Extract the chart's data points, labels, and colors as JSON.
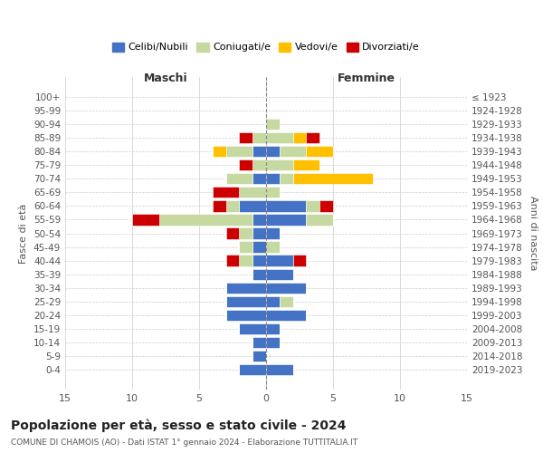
{
  "age_groups": [
    "0-4",
    "5-9",
    "10-14",
    "15-19",
    "20-24",
    "25-29",
    "30-34",
    "35-39",
    "40-44",
    "45-49",
    "50-54",
    "55-59",
    "60-64",
    "65-69",
    "70-74",
    "75-79",
    "80-84",
    "85-89",
    "90-94",
    "95-99",
    "100+"
  ],
  "birth_years": [
    "2019-2023",
    "2014-2018",
    "2009-2013",
    "2004-2008",
    "1999-2003",
    "1994-1998",
    "1989-1993",
    "1984-1988",
    "1979-1983",
    "1974-1978",
    "1969-1973",
    "1964-1968",
    "1959-1963",
    "1954-1958",
    "1949-1953",
    "1944-1948",
    "1939-1943",
    "1934-1938",
    "1929-1933",
    "1924-1928",
    "≤ 1923"
  ],
  "colors": {
    "celibi": "#4472c4",
    "coniugati": "#c5d9a0",
    "vedovi": "#ffc000",
    "divorziati": "#cc0000"
  },
  "maschi": {
    "celibi": [
      2,
      1,
      1,
      2,
      3,
      3,
      3,
      1,
      1,
      1,
      1,
      1,
      2,
      0,
      1,
      0,
      1,
      0,
      0,
      0,
      0
    ],
    "coniugati": [
      0,
      0,
      0,
      0,
      0,
      0,
      0,
      0,
      1,
      1,
      1,
      7,
      1,
      2,
      2,
      1,
      2,
      1,
      0,
      0,
      0
    ],
    "vedovi": [
      0,
      0,
      0,
      0,
      0,
      0,
      0,
      0,
      0,
      0,
      0,
      0,
      0,
      0,
      0,
      0,
      1,
      0,
      0,
      0,
      0
    ],
    "divorziati": [
      0,
      0,
      0,
      0,
      0,
      0,
      0,
      0,
      1,
      0,
      1,
      2,
      1,
      2,
      0,
      1,
      0,
      1,
      0,
      0,
      0
    ]
  },
  "femmine": {
    "celibi": [
      2,
      0,
      1,
      1,
      3,
      1,
      3,
      2,
      2,
      0,
      1,
      3,
      3,
      0,
      1,
      0,
      1,
      0,
      0,
      0,
      0
    ],
    "coniugati": [
      0,
      0,
      0,
      0,
      0,
      1,
      0,
      0,
      0,
      1,
      0,
      2,
      1,
      1,
      1,
      2,
      2,
      2,
      1,
      0,
      0
    ],
    "vedovi": [
      0,
      0,
      0,
      0,
      0,
      0,
      0,
      0,
      0,
      0,
      0,
      0,
      0,
      0,
      6,
      2,
      2,
      1,
      0,
      0,
      0
    ],
    "divorziati": [
      0,
      0,
      0,
      0,
      0,
      0,
      0,
      0,
      1,
      0,
      0,
      0,
      1,
      0,
      0,
      0,
      0,
      1,
      0,
      0,
      0
    ]
  },
  "title": "Popolazione per età, sesso e stato civile - 2024",
  "subtitle": "COMUNE DI CHAMOIS (AO) - Dati ISTAT 1° gennaio 2024 - Elaborazione TUTTITALIA.IT",
  "xlabel_left": "Maschi",
  "xlabel_right": "Femmine",
  "ylabel_left": "Fasce di età",
  "ylabel_right": "Anni di nascita",
  "xlim": 15,
  "legend_labels": [
    "Celibi/Nubili",
    "Coniugati/e",
    "Vedovi/e",
    "Divorziati/e"
  ],
  "bg_color": "#ffffff",
  "grid_color": "#cccccc"
}
